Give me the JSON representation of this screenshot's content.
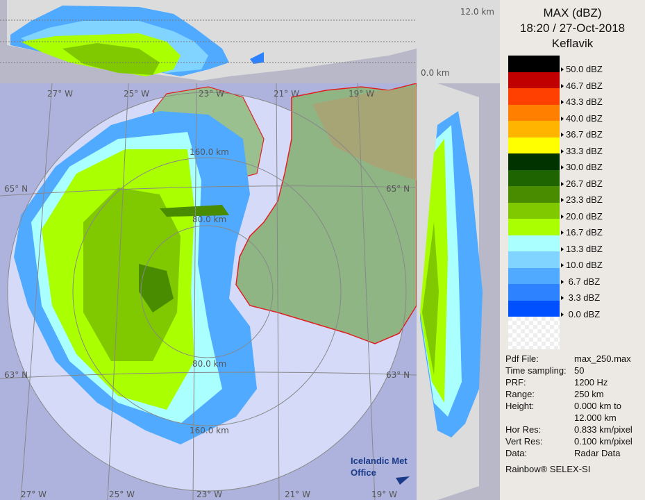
{
  "header": {
    "product": "MAX (dBZ)",
    "datetime": "18:20 / 27-Oct-2018",
    "site": "Keflavik"
  },
  "legend": [
    {
      "color": "#000000",
      "label": "50.0 dBZ"
    },
    {
      "color": "#c00000",
      "label": "46.7 dBZ"
    },
    {
      "color": "#ff4000",
      "label": "43.3 dBZ"
    },
    {
      "color": "#ff8000",
      "label": "40.0 dBZ"
    },
    {
      "color": "#ffb400",
      "label": "36.7 dBZ"
    },
    {
      "color": "#ffff00",
      "label": "33.3 dBZ"
    },
    {
      "color": "#003300",
      "label": "30.0 dBZ"
    },
    {
      "color": "#1e6400",
      "label": "26.7 dBZ"
    },
    {
      "color": "#4a8c00",
      "label": "23.3 dBZ"
    },
    {
      "color": "#80c800",
      "label": "20.0 dBZ"
    },
    {
      "color": "#aaff00",
      "label": "16.7 dBZ"
    },
    {
      "color": "#aaffff",
      "label": "13.3 dBZ"
    },
    {
      "color": "#80d4ff",
      "label": "10.0 dBZ"
    },
    {
      "color": "#50aaff",
      "label": " 6.7 dBZ"
    },
    {
      "color": "#2d82ff",
      "label": " 3.3 dBZ"
    },
    {
      "color": "#0050ff",
      "label": " 0.0 dBZ"
    },
    {
      "color": "#ffffff",
      "label": ""
    }
  ],
  "info": [
    {
      "key": "Pdf File:",
      "value": "max_250.max"
    },
    {
      "key": "Time sampling:",
      "value": "50"
    },
    {
      "key": "PRF:",
      "value": "1200 Hz"
    },
    {
      "key": "Range:",
      "value": "250 km"
    },
    {
      "key": "Height:",
      "value": "0.000 km to"
    },
    {
      "key": "",
      "value": "12.000 km"
    },
    {
      "key": "Hor Res:",
      "value": "0.833 km/pixel"
    },
    {
      "key": "Vert Res:",
      "value": "0.100 km/pixel"
    },
    {
      "key": "Data:",
      "value": "Radar Data"
    }
  ],
  "footer": "Rainbow® SELEX-SI",
  "cross_section": {
    "top_label": "12.0 km",
    "bottom_label": "0.0 km"
  },
  "map": {
    "lon_labels_top": [
      "27° W",
      "25° W",
      "23° W",
      "21° W",
      "19° W"
    ],
    "lon_labels_bottom": [
      "27° W",
      "25° W",
      "23° W",
      "21° W",
      "19° W"
    ],
    "lat_labels": [
      "65° N",
      "63° N"
    ],
    "range_labels": [
      "160.0 km",
      "80.0 km",
      "80.0 km",
      "160.0 km"
    ],
    "logo": [
      "Icelandic Met",
      "Office"
    ]
  }
}
